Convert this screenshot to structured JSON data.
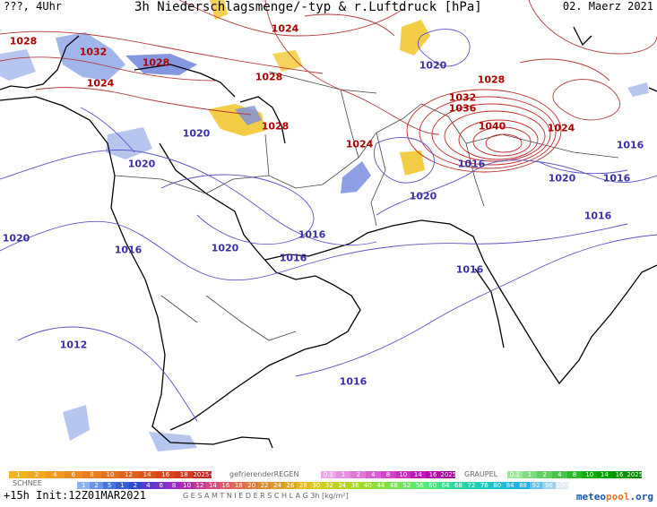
{
  "header": {
    "left": "???, 4Uhr",
    "main": "3h Niederschlagsmenge/-typ & r.Luftdruck [hPa]",
    "date": "02. Maerz 2021"
  },
  "isobars": [
    {
      "text": "1028",
      "color": "red"
    },
    {
      "text": "1032",
      "color": "red"
    },
    {
      "text": "1028",
      "color": "red"
    },
    {
      "text": "1024",
      "color": "red"
    },
    {
      "text": "1024",
      "color": "red"
    },
    {
      "text": "1028",
      "color": "red"
    },
    {
      "text": "1028",
      "color": "red"
    },
    {
      "text": "1024",
      "color": "red"
    },
    {
      "text": "1032",
      "color": "red"
    },
    {
      "text": "1036",
      "color": "red"
    },
    {
      "text": "1040",
      "color": "red"
    },
    {
      "text": "1024",
      "color": "red"
    },
    {
      "text": "1028",
      "color": "red"
    },
    {
      "text": "1020",
      "color": "blue"
    },
    {
      "text": "1020",
      "color": "blue"
    },
    {
      "text": "1020",
      "color": "blue"
    },
    {
      "text": "1016",
      "color": "blue"
    },
    {
      "text": "1016",
      "color": "blue"
    },
    {
      "text": "1020",
      "color": "blue"
    },
    {
      "text": "1016",
      "color": "blue"
    },
    {
      "text": "1020",
      "color": "blue"
    },
    {
      "text": "1016",
      "color": "blue"
    },
    {
      "text": "1020",
      "color": "blue"
    },
    {
      "text": "1020",
      "color": "blue"
    },
    {
      "text": "1016",
      "color": "blue"
    },
    {
      "text": "1016",
      "color": "blue"
    },
    {
      "text": "1016",
      "color": "blue"
    },
    {
      "text": "1016",
      "color": "blue"
    },
    {
      "text": "1012",
      "color": "blue"
    },
    {
      "text": "1016",
      "color": "blue"
    }
  ],
  "legend": {
    "freezing_rain_label": "gefrierenderREGEN",
    "freezing_rain_values": [
      "0.1",
      "1",
      "2",
      "4",
      "8",
      "10",
      "14",
      "16",
      "2025+"
    ],
    "graupel_label": "GRAUPEL",
    "graupel_values": [
      "0.1",
      "1",
      "2",
      "4",
      "8",
      "10",
      "14",
      "16",
      "2025+"
    ],
    "snow_label": "SCHNEE",
    "total_label": "G E S A M T N I E D E R S C H L A G  3h [kg/m²]",
    "rain_values": [
      "1",
      "2",
      "4",
      "6",
      "8",
      "10",
      "12",
      "14",
      "16",
      "18",
      "2025+"
    ],
    "total_values": [
      "1",
      "2",
      "5",
      "1",
      "2",
      "4",
      "6",
      "8",
      "10",
      "12",
      "14",
      "16",
      "18",
      "20",
      "22",
      "24",
      "26",
      "28",
      "30",
      "32",
      "34",
      "36",
      "40",
      "44",
      "48",
      "52",
      "56",
      "60",
      "64",
      "68",
      "72",
      "76",
      "80",
      "84",
      "88",
      "92",
      "96",
      "100"
    ]
  },
  "footer": {
    "run": "+15h Init:12Z01MAR2021",
    "brand_a": "meteo",
    "brand_b": "pool",
    "brand_c": ".org"
  }
}
